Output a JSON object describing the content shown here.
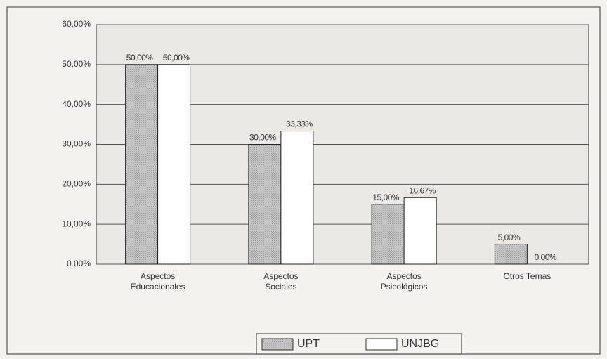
{
  "chart_data": {
    "type": "bar",
    "categories": [
      "Aspectos Educacionales",
      "Aspectos Sociales",
      "Aspectos Psicológicos",
      "Otros Temas"
    ],
    "series": [
      {
        "name": "UPT",
        "color": "#bdbdbd",
        "values": [
          50,
          30,
          15,
          5
        ],
        "value_labels": [
          "50,00%",
          "30,00%",
          "15,00%",
          "5,00%"
        ]
      },
      {
        "name": "UNJBG",
        "color": "#ffffff",
        "values": [
          50,
          33.33,
          16.67,
          0
        ],
        "value_labels": [
          "50,00%",
          "33,33%",
          "16,67%",
          "0,00%"
        ]
      }
    ],
    "ylim": [
      0,
      60
    ],
    "yticks": [
      {
        "value": 0,
        "label": "0.00%"
      },
      {
        "value": 10,
        "label": "10,00%"
      },
      {
        "value": 20,
        "label": "20,00%"
      },
      {
        "value": 30,
        "label": "30,00%"
      },
      {
        "value": 40,
        "label": "40,00%"
      },
      {
        "value": 50,
        "label": "50,00%"
      },
      {
        "value": 60,
        "label": "60,00%"
      }
    ],
    "grid": true,
    "legend": "bottom"
  }
}
